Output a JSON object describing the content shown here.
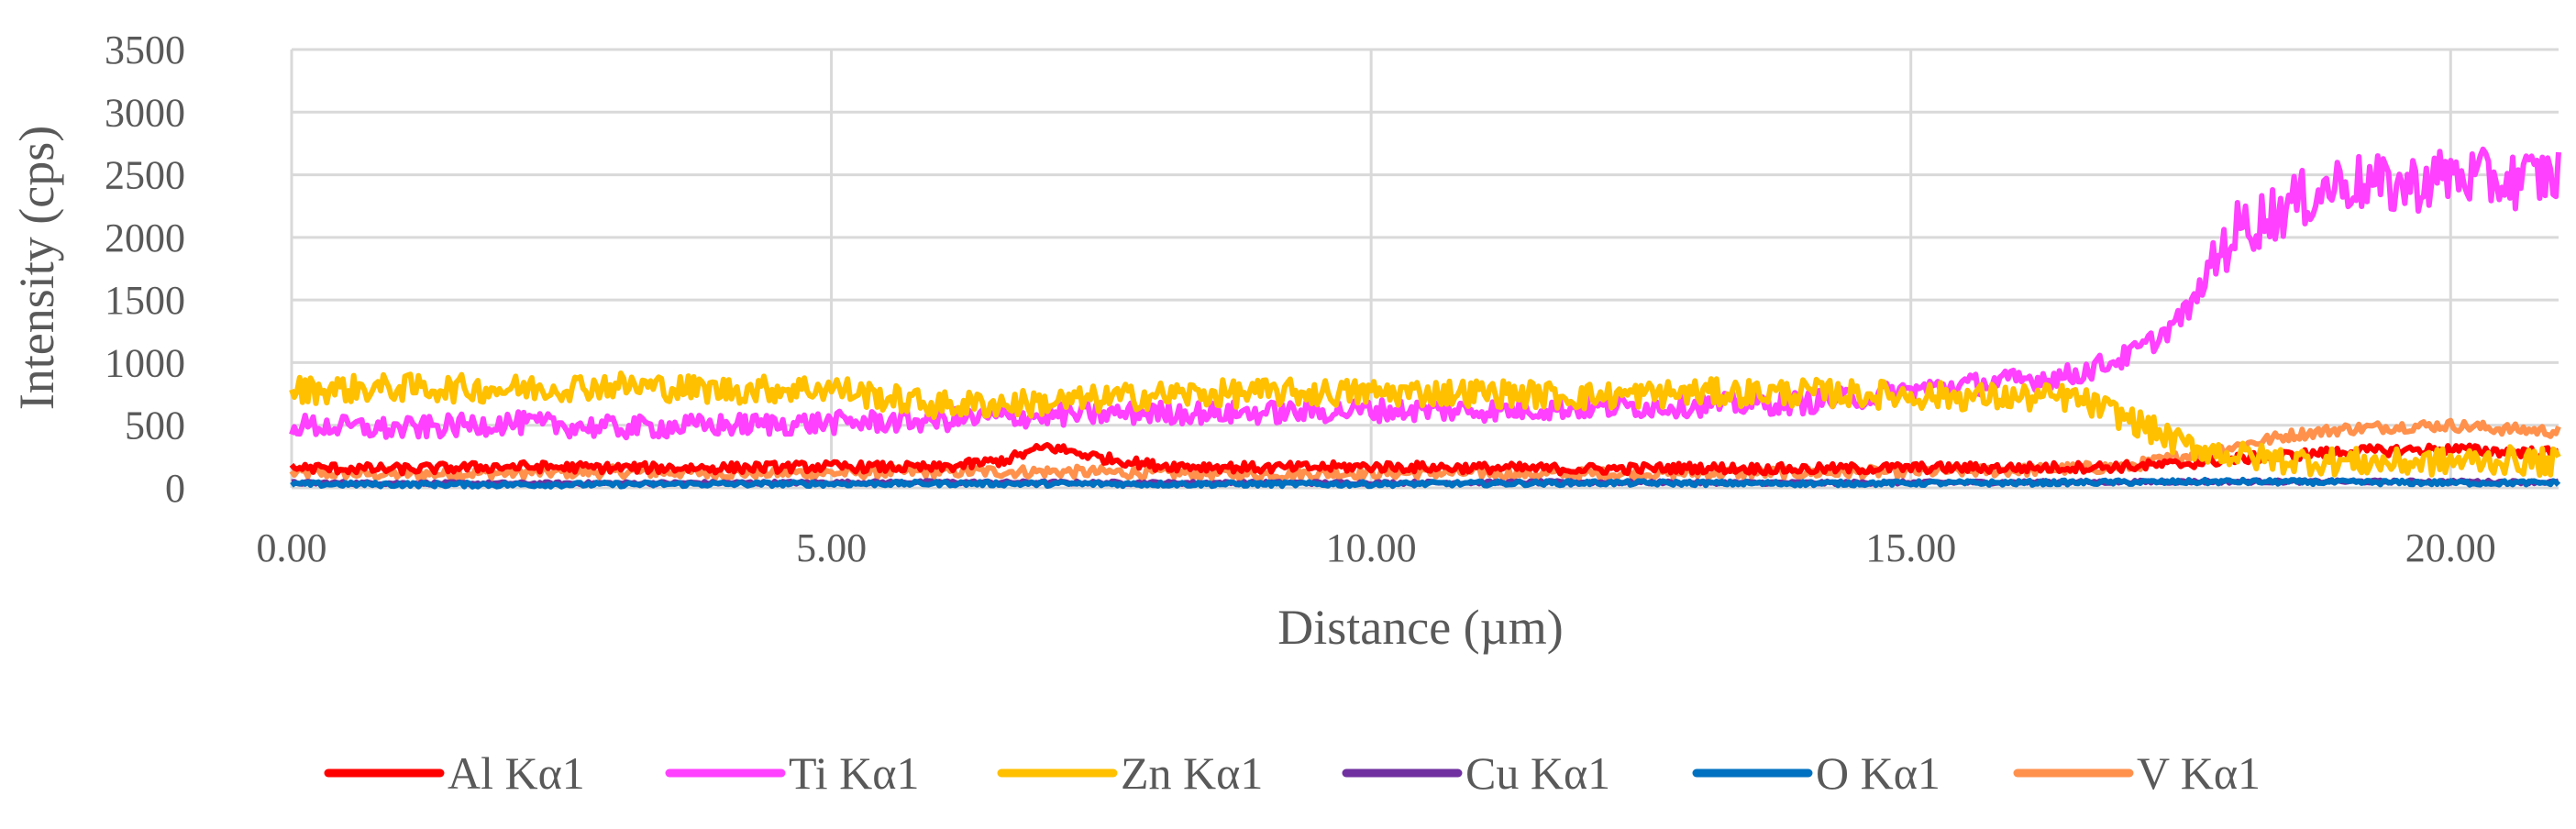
{
  "chart_data": {
    "type": "line",
    "xlabel": "Distance (µm)",
    "ylabel": "Intensity (cps)",
    "xlim": [
      0,
      21
    ],
    "ylim": [
      0,
      3500
    ],
    "x_ticks": [
      0,
      5,
      10,
      15,
      20
    ],
    "x_tick_labels": [
      "0.00",
      "5.00",
      "10.00",
      "15.00",
      "20.00"
    ],
    "y_ticks": [
      0,
      500,
      1000,
      1500,
      2000,
      2500,
      3000,
      3500
    ],
    "y_tick_labels": [
      "0",
      "500",
      "1000",
      "1500",
      "2000",
      "2500",
      "3000",
      "3500"
    ],
    "grid": true,
    "legend_position": "bottom",
    "series": [
      {
        "name": "Al Kα1",
        "color": "#ff0000",
        "x": [
          0,
          1,
          2,
          3,
          4,
          5,
          6,
          6.6,
          7,
          7.5,
          8,
          9,
          10,
          11,
          12,
          13,
          14,
          15,
          16,
          17,
          17.5,
          18,
          18.5,
          19,
          19.5,
          20,
          20.5,
          21
        ],
        "y": [
          160,
          150,
          170,
          160,
          160,
          170,
          160,
          220,
          330,
          240,
          180,
          160,
          170,
          160,
          150,
          160,
          150,
          160,
          160,
          170,
          190,
          230,
          260,
          290,
          300,
          310,
          290,
          280
        ]
      },
      {
        "name": "Ti Kα1",
        "color": "#ff40ff",
        "x": [
          0,
          1,
          2,
          3,
          4,
          5,
          6,
          7,
          8,
          9,
          10,
          11,
          12,
          13,
          14,
          14.5,
          15,
          15.5,
          16,
          16.5,
          17,
          17.3,
          17.6,
          17.8,
          18,
          18.5,
          19,
          19.5,
          20,
          20.5,
          21
        ],
        "y": [
          500,
          470,
          520,
          480,
          500,
          520,
          540,
          580,
          600,
          600,
          620,
          620,
          640,
          660,
          680,
          720,
          780,
          820,
          860,
          900,
          1050,
          1200,
          1450,
          1800,
          2050,
          2250,
          2450,
          2400,
          2500,
          2450,
          2500
        ]
      },
      {
        "name": "Zn Kα1",
        "color": "#ffc000",
        "x": [
          0,
          1,
          2,
          3,
          4,
          5,
          5.5,
          6,
          7,
          8,
          9,
          10,
          11,
          12,
          13,
          14,
          15,
          16,
          16.5,
          17,
          17.5,
          18,
          18.5,
          19,
          19.5,
          20,
          20.5,
          21
        ],
        "y": [
          780,
          800,
          790,
          820,
          780,
          800,
          720,
          660,
          680,
          740,
          760,
          760,
          760,
          730,
          760,
          760,
          740,
          720,
          720,
          560,
          350,
          260,
          220,
          210,
          200,
          210,
          220,
          200
        ]
      },
      {
        "name": "Cu Kα1",
        "color": "#7030a0",
        "x": [
          0,
          2,
          4,
          6,
          8,
          10,
          12,
          14,
          16,
          18,
          20,
          21
        ],
        "y": [
          40,
          35,
          40,
          45,
          40,
          40,
          45,
          40,
          45,
          50,
          50,
          45
        ]
      },
      {
        "name": "O Kα1",
        "color": "#0070c0",
        "x": [
          0,
          2,
          4,
          6,
          8,
          10,
          12,
          14,
          16,
          18,
          20,
          21
        ],
        "y": [
          30,
          25,
          30,
          35,
          30,
          30,
          40,
          35,
          40,
          50,
          40,
          40
        ]
      },
      {
        "name": "V Kα1",
        "color": "#ff914d",
        "x": [
          0,
          1,
          2,
          3,
          4,
          5,
          6,
          7,
          8,
          9,
          10,
          11,
          12,
          13,
          14,
          15,
          16,
          17,
          17.5,
          18,
          18.5,
          19,
          19.5,
          20,
          20.5,
          21
        ],
        "y": [
          120,
          110,
          120,
          130,
          120,
          120,
          130,
          130,
          120,
          110,
          120,
          120,
          110,
          120,
          120,
          130,
          140,
          170,
          250,
          330,
          420,
          470,
          490,
          500,
          470,
          450
        ]
      }
    ]
  }
}
